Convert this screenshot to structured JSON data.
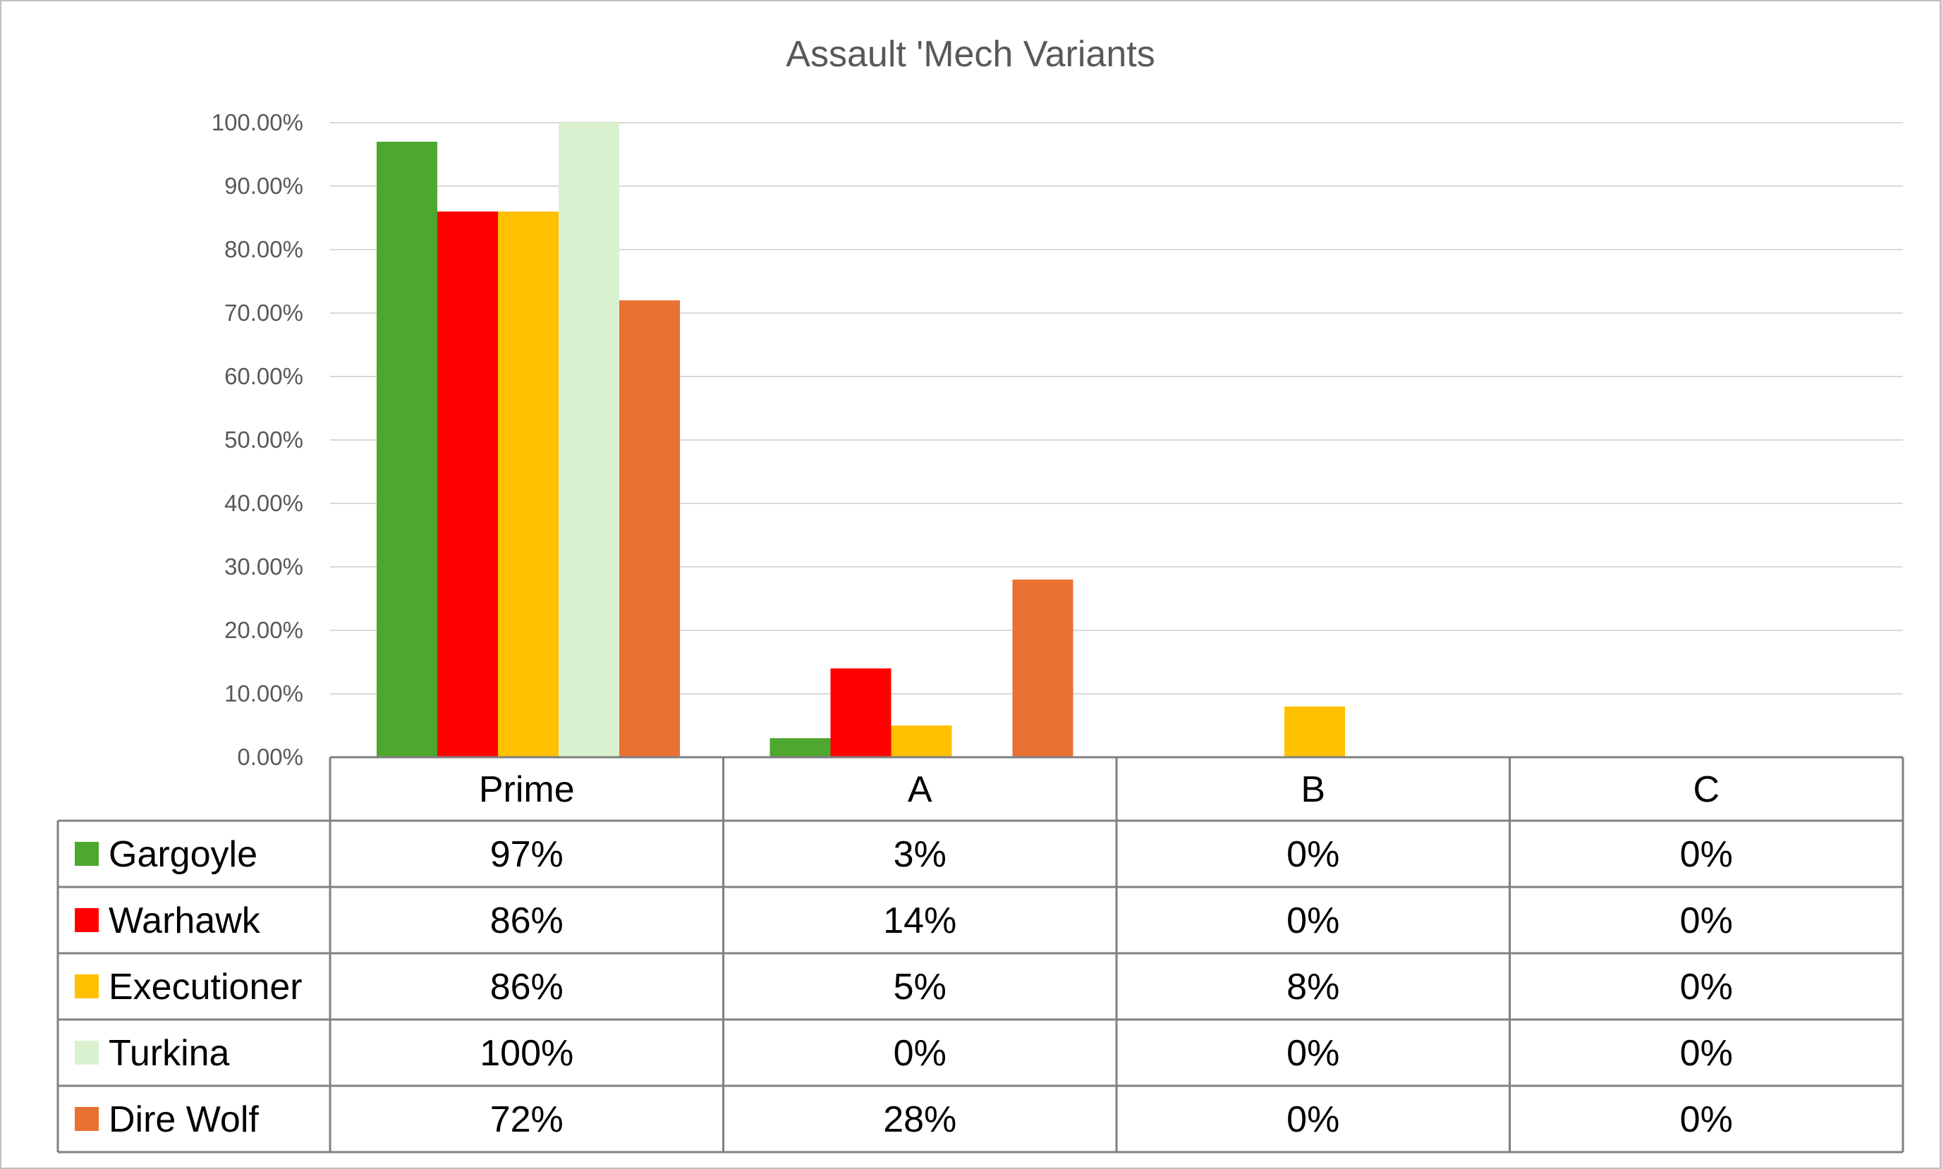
{
  "chart_data": {
    "type": "bar",
    "title": "Assault 'Mech Variants",
    "categories": [
      "Prime",
      "A",
      "B",
      "C"
    ],
    "ylim": [
      0,
      1
    ],
    "y_ticks": [
      "0.00%",
      "10.00%",
      "20.00%",
      "30.00%",
      "40.00%",
      "50.00%",
      "60.00%",
      "70.00%",
      "80.00%",
      "90.00%",
      "100.00%"
    ],
    "grid": true,
    "legend_placement": "data-table",
    "series": [
      {
        "name": "Gargoyle",
        "color": "#4ea72e",
        "values": [
          0.97,
          0.03,
          0,
          0
        ],
        "labels": [
          "97%",
          "3%",
          "0%",
          "0%"
        ]
      },
      {
        "name": "Warhawk",
        "color": "#ff0000",
        "values": [
          0.86,
          0.14,
          0,
          0
        ],
        "labels": [
          "86%",
          "14%",
          "0%",
          "0%"
        ]
      },
      {
        "name": "Executioner",
        "color": "#ffc000",
        "values": [
          0.86,
          0.05,
          0.08,
          0
        ],
        "labels": [
          "86%",
          "5%",
          "8%",
          "0%"
        ]
      },
      {
        "name": "Turkina",
        "color": "#daf2d0",
        "values": [
          1.0,
          0,
          0,
          0
        ],
        "labels": [
          "100%",
          "0%",
          "0%",
          "0%"
        ]
      },
      {
        "name": "Dire Wolf",
        "color": "#e97132",
        "values": [
          0.72,
          0.28,
          0,
          0
        ],
        "labels": [
          "72%",
          "28%",
          "0%",
          "0%"
        ]
      }
    ]
  }
}
